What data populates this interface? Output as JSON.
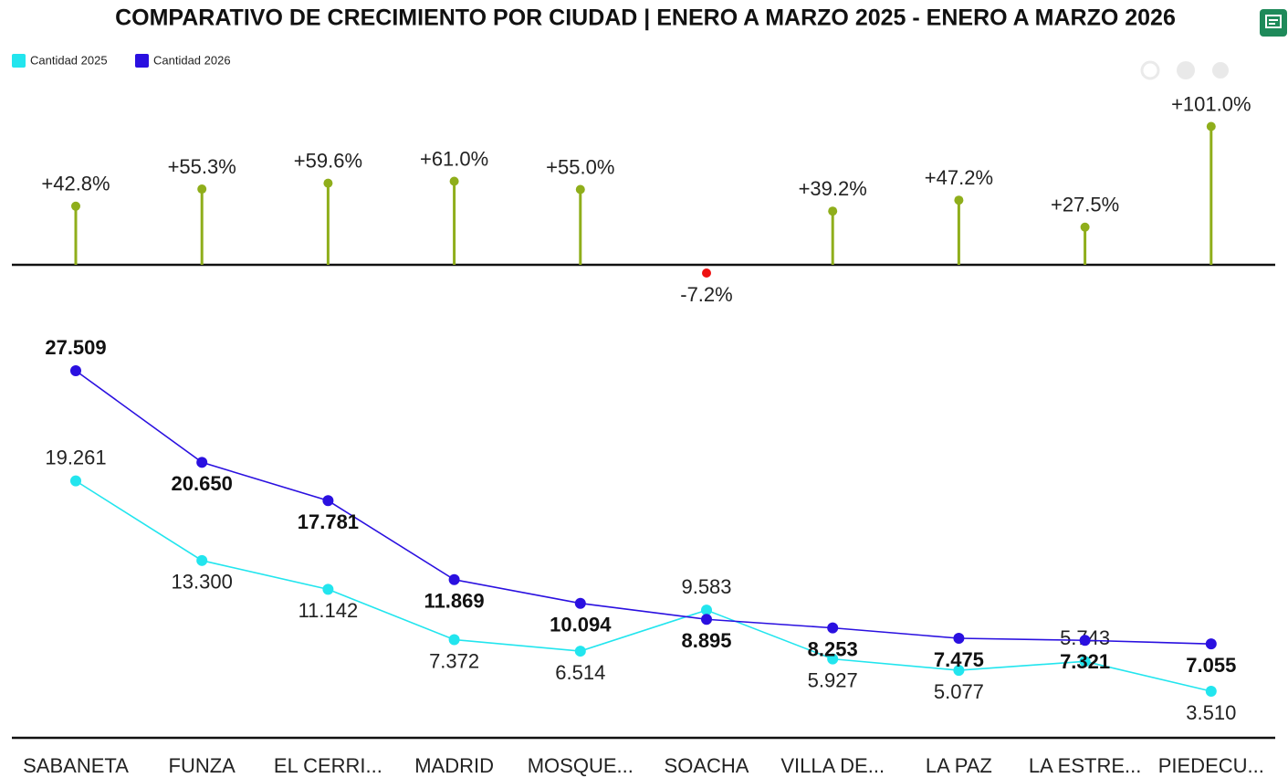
{
  "chart_data": [
    {
      "type": "lollipop",
      "title": "COMPARATIVO DE CRECIMIENTO POR CIUDAD | ENERO A MARZO 2025 - ENERO A MARZO 2026",
      "values": [
        42.8,
        55.3,
        59.6,
        61.0,
        55.0,
        -7.2,
        39.2,
        47.2,
        27.5,
        101.0
      ],
      "value_labels": [
        "+42.8%",
        "+55.3%",
        "+59.6%",
        "+61.0%",
        "+55.0%",
        "-7.2%",
        "+39.2%",
        "+47.2%",
        "+27.5%",
        "+101.0%"
      ],
      "color": "#8fae1b",
      "negative_color": "#ee1111"
    },
    {
      "type": "line",
      "categories": [
        "SABANETA",
        "FUNZA",
        "EL CERRI...",
        "MADRID",
        "MOSQUE...",
        "SOACHA",
        "VILLA DE...",
        "LA PAZ",
        "LA ESTRE...",
        "PIEDECU..."
      ],
      "series": [
        {
          "name": "Cantidad 2025",
          "color": "#22e5ee",
          "values": [
            19261,
            13300,
            11142,
            7372,
            6514,
            9583,
            5927,
            5077,
            5743,
            3510
          ],
          "value_labels": [
            "19.261",
            "13.300",
            "11.142",
            "7.372",
            "6.514",
            "9.583",
            "5.927",
            "5.077",
            "5.743",
            "3.510"
          ]
        },
        {
          "name": "Cantidad 2026",
          "color": "#2a10e0",
          "values": [
            27509,
            20650,
            17781,
            11869,
            10094,
            8895,
            8253,
            7475,
            7321,
            7055
          ],
          "value_labels": [
            "27.509",
            "20.650",
            "17.781",
            "11.869",
            "10.094",
            "8.895",
            "8.253",
            "7.475",
            "7.321",
            "7.055"
          ]
        }
      ]
    }
  ]
}
